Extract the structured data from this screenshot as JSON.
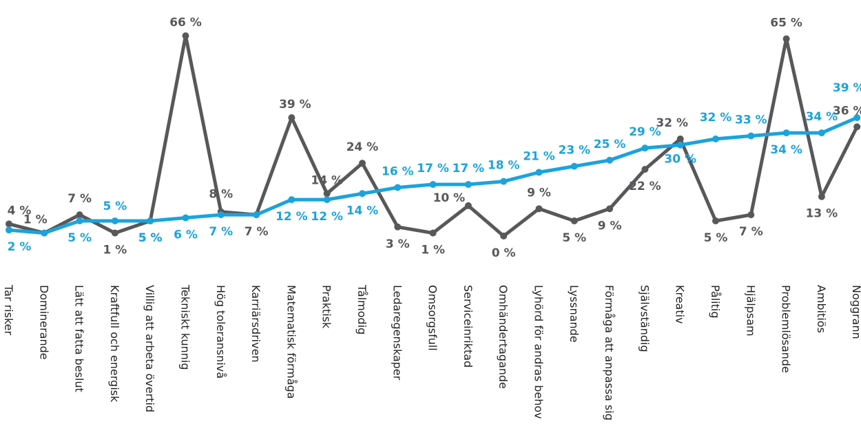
{
  "chart_data": {
    "type": "line",
    "categories": [
      "Tar risker",
      "Dominerande",
      "Lätt att fatta beslut",
      "Kraftfull och energisk",
      "Villig att arbeta övertid",
      "Tekniskt kunnig",
      "Hög toleransnivå",
      "Karriärsdriven",
      "Matematisk förmåga",
      "Praktisk",
      "Tålmodig",
      "Ledaregenskaper",
      "Omsorgsfull",
      "Serviceinriktad",
      "Omhändertagande",
      "Lyhörd för andras behov",
      "Lyssnande",
      "Förmåga att anpassa sig",
      "Självständig",
      "Kreativ",
      "Pålitig",
      "Hjälpsam",
      "Problemlösande",
      "Ambitiös",
      "Noggrann"
    ],
    "series": [
      {
        "color": "#58585a",
        "values": [
          4,
          1,
          7,
          1,
          5,
          66,
          8,
          7,
          39,
          14,
          24,
          3,
          1,
          10,
          0,
          9,
          5,
          9,
          22,
          32,
          5,
          7,
          65,
          13,
          36
        ],
        "labels": [
          "4 %",
          "1 %",
          "7 %",
          "1 %",
          "5 %",
          "66 %",
          "8 %",
          "7 %",
          "39 %",
          "14 %",
          "24 %",
          "3 %",
          "1 %",
          "10 %",
          "0 %",
          "9 %",
          "5 %",
          "9 %",
          "22 %",
          "32 %",
          "5 %",
          "7 %",
          "65 %",
          "13 %",
          "36 %"
        ]
      },
      {
        "color": "#1ba3dd",
        "values": [
          2,
          1,
          5,
          5,
          5,
          6,
          7,
          7,
          12,
          12,
          14,
          16,
          17,
          17,
          18,
          21,
          23,
          25,
          29,
          30,
          32,
          33,
          34,
          34,
          39
        ],
        "labels": [
          "2 %",
          "1 %",
          "5 %",
          "5 %",
          "5 %",
          "6 %",
          "7 %",
          "7 %",
          "12 %",
          "12 %",
          "14 %",
          "16 %",
          "17 %",
          "17 %",
          "18 %",
          "21 %",
          "23 %",
          "25 %",
          "29 %",
          "30 %",
          "32 %",
          "33 %",
          "34 %",
          "34 %",
          "39 %"
        ]
      }
    ],
    "ylim": [
      0,
      66
    ],
    "grid": false,
    "legend": "none",
    "xlabel": "",
    "ylabel": ""
  }
}
